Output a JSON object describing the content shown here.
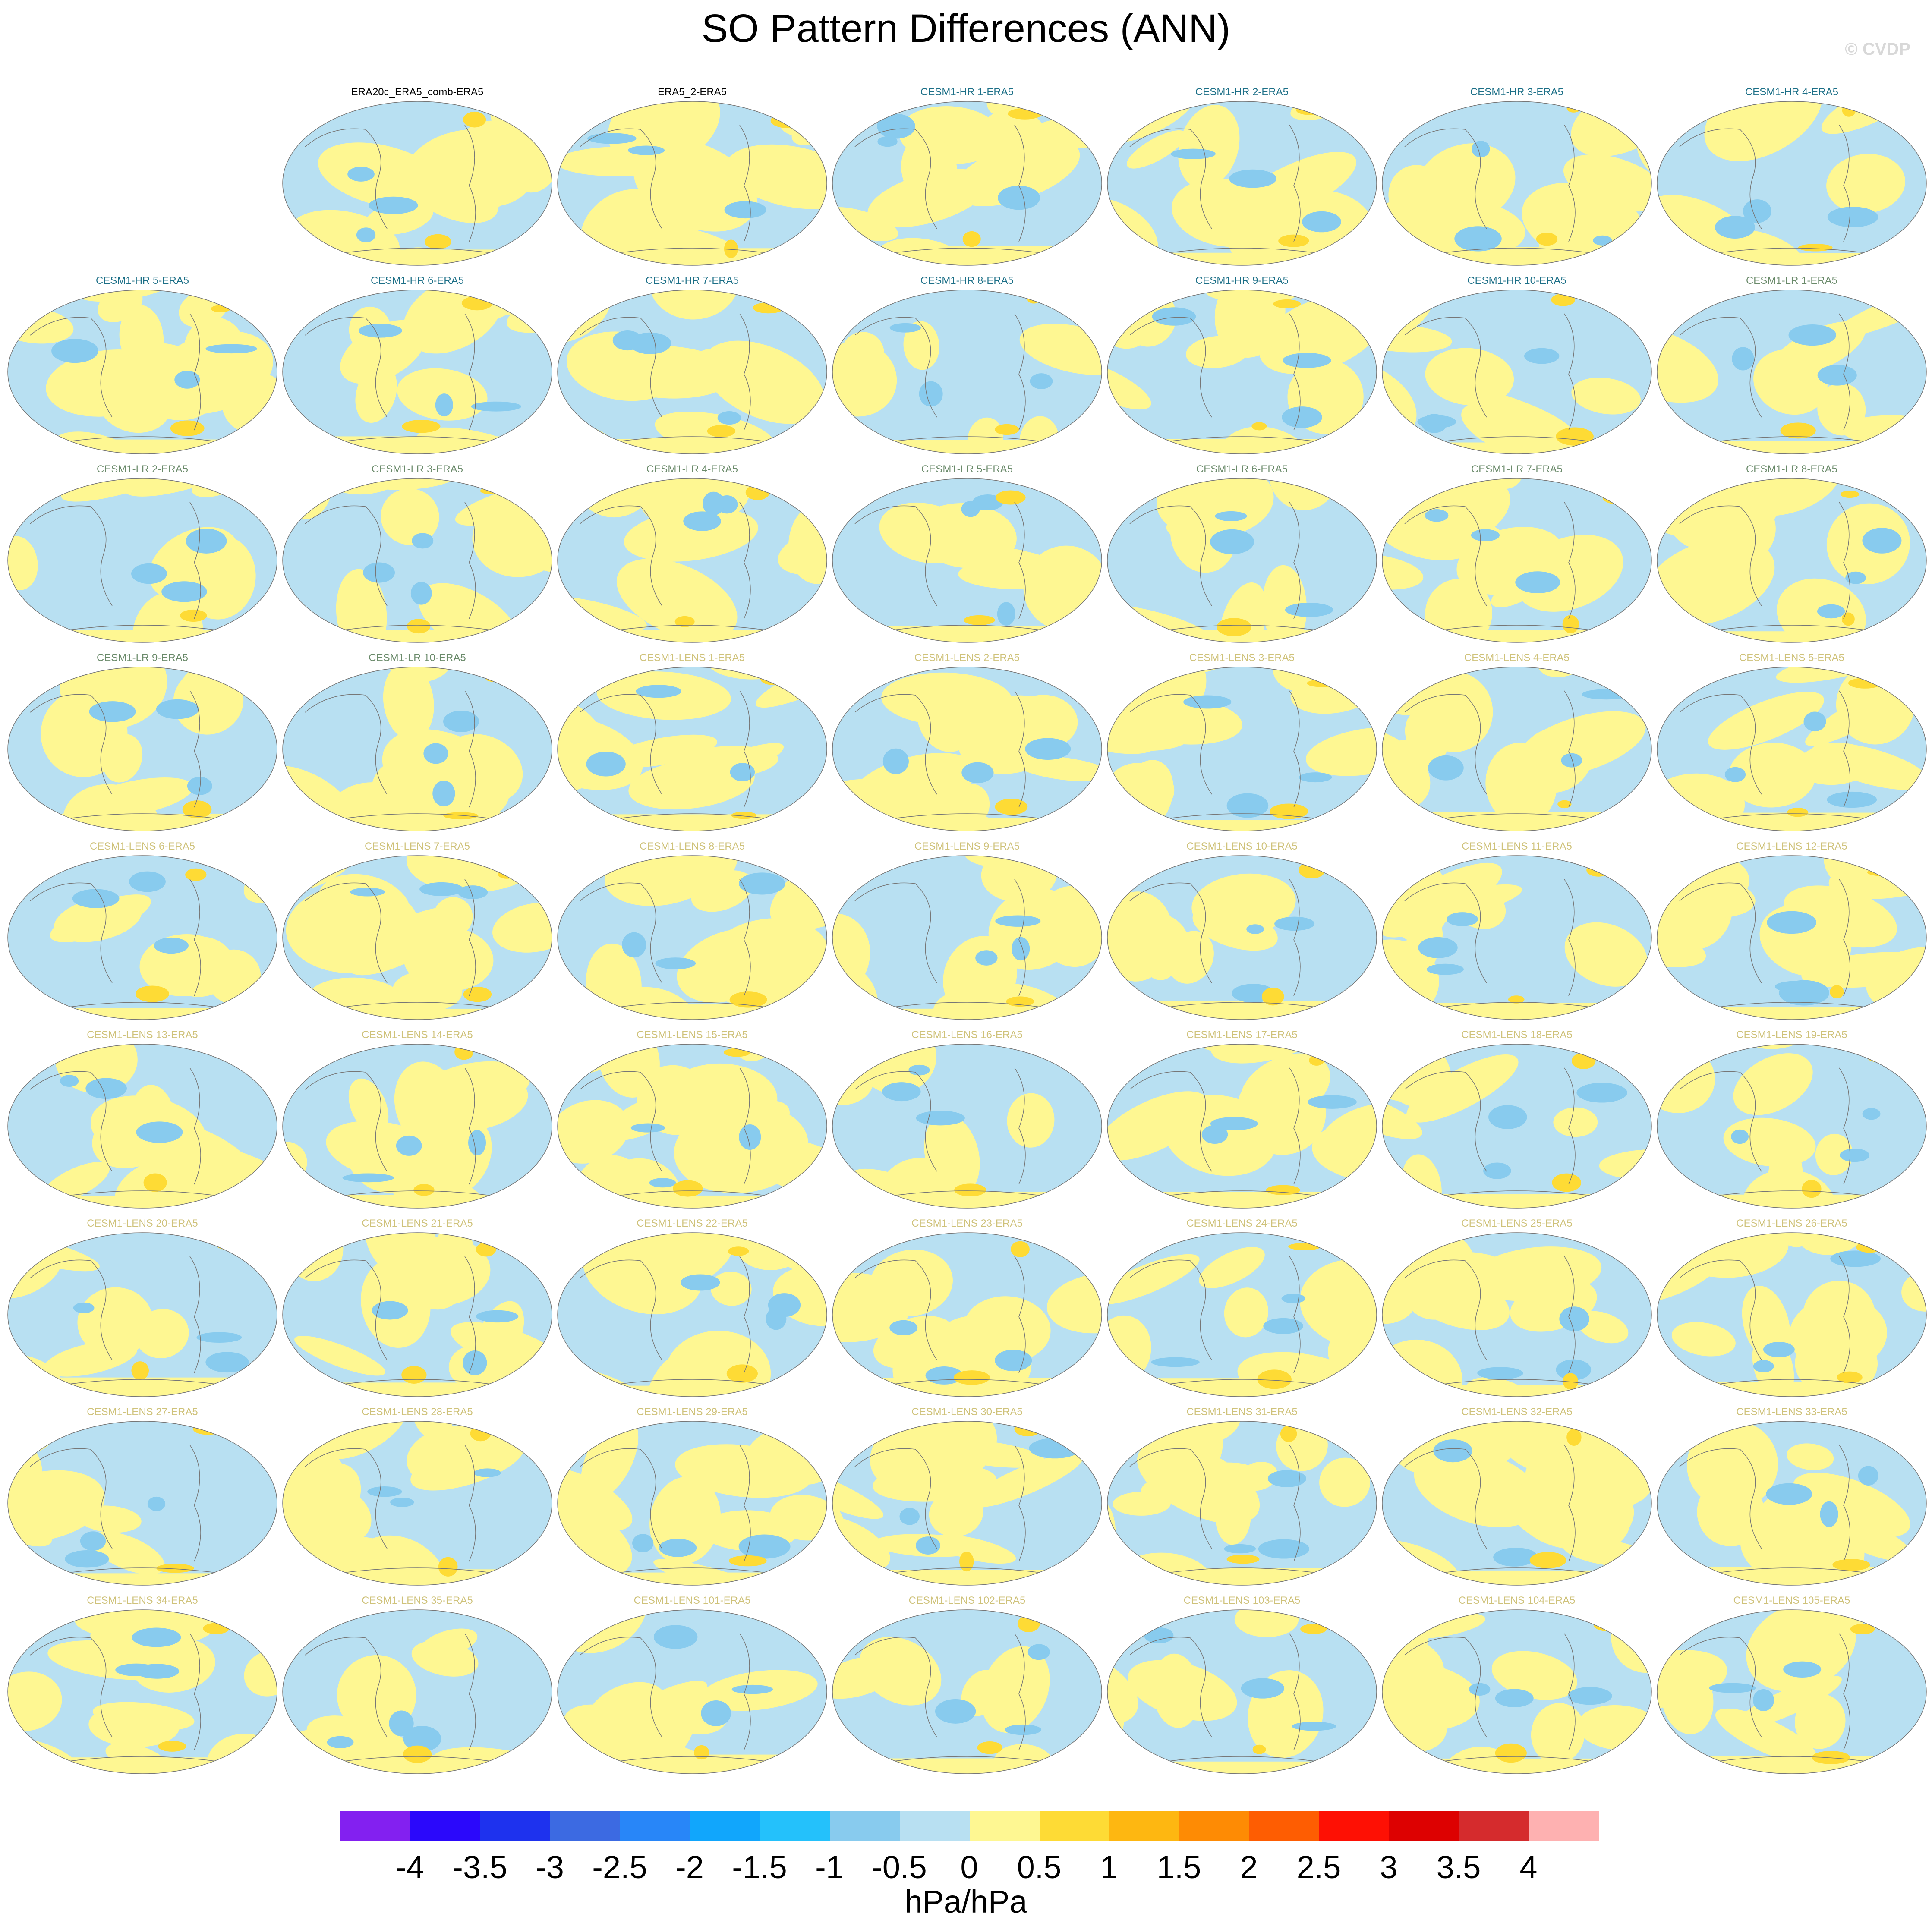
{
  "title": "SO Pattern Differences (ANN)",
  "watermark": "© CVDP",
  "group_colors": {
    "obs": "#000000",
    "hr": "#1c6f87",
    "lr": "#6a8a6a",
    "lens": "#cfc27a"
  },
  "chart_data": {
    "type": "heatmap",
    "title": "SO Pattern Differences (ANN)",
    "description_units": "hPa/hPa",
    "panels": [
      {
        "label": "ERA20c_ERA5_comb-ERA5",
        "group": "obs"
      },
      {
        "label": "ERA5_2-ERA5",
        "group": "obs"
      },
      {
        "label": "CESM1-HR 1-ERA5",
        "group": "hr"
      },
      {
        "label": "CESM1-HR 2-ERA5",
        "group": "hr"
      },
      {
        "label": "CESM1-HR 3-ERA5",
        "group": "hr"
      },
      {
        "label": "CESM1-HR 4-ERA5",
        "group": "hr"
      },
      {
        "label": "CESM1-HR 5-ERA5",
        "group": "hr"
      },
      {
        "label": "CESM1-HR 6-ERA5",
        "group": "hr"
      },
      {
        "label": "CESM1-HR 7-ERA5",
        "group": "hr"
      },
      {
        "label": "CESM1-HR 8-ERA5",
        "group": "hr"
      },
      {
        "label": "CESM1-HR 9-ERA5",
        "group": "hr"
      },
      {
        "label": "CESM1-HR 10-ERA5",
        "group": "hr"
      },
      {
        "label": "CESM1-LR 1-ERA5",
        "group": "lr"
      },
      {
        "label": "CESM1-LR 2-ERA5",
        "group": "lr"
      },
      {
        "label": "CESM1-LR 3-ERA5",
        "group": "lr"
      },
      {
        "label": "CESM1-LR 4-ERA5",
        "group": "lr"
      },
      {
        "label": "CESM1-LR 5-ERA5",
        "group": "lr"
      },
      {
        "label": "CESM1-LR 6-ERA5",
        "group": "lr"
      },
      {
        "label": "CESM1-LR 7-ERA5",
        "group": "lr"
      },
      {
        "label": "CESM1-LR 8-ERA5",
        "group": "lr"
      },
      {
        "label": "CESM1-LR 9-ERA5",
        "group": "lr"
      },
      {
        "label": "CESM1-LR 10-ERA5",
        "group": "lr"
      },
      {
        "label": "CESM1-LENS 1-ERA5",
        "group": "lens"
      },
      {
        "label": "CESM1-LENS 2-ERA5",
        "group": "lens"
      },
      {
        "label": "CESM1-LENS 3-ERA5",
        "group": "lens"
      },
      {
        "label": "CESM1-LENS 4-ERA5",
        "group": "lens"
      },
      {
        "label": "CESM1-LENS 5-ERA5",
        "group": "lens"
      },
      {
        "label": "CESM1-LENS 6-ERA5",
        "group": "lens"
      },
      {
        "label": "CESM1-LENS 7-ERA5",
        "group": "lens"
      },
      {
        "label": "CESM1-LENS 8-ERA5",
        "group": "lens"
      },
      {
        "label": "CESM1-LENS 9-ERA5",
        "group": "lens"
      },
      {
        "label": "CESM1-LENS 10-ERA5",
        "group": "lens"
      },
      {
        "label": "CESM1-LENS 11-ERA5",
        "group": "lens"
      },
      {
        "label": "CESM1-LENS 12-ERA5",
        "group": "lens"
      },
      {
        "label": "CESM1-LENS 13-ERA5",
        "group": "lens"
      },
      {
        "label": "CESM1-LENS 14-ERA5",
        "group": "lens"
      },
      {
        "label": "CESM1-LENS 15-ERA5",
        "group": "lens"
      },
      {
        "label": "CESM1-LENS 16-ERA5",
        "group": "lens"
      },
      {
        "label": "CESM1-LENS 17-ERA5",
        "group": "lens"
      },
      {
        "label": "CESM1-LENS 18-ERA5",
        "group": "lens"
      },
      {
        "label": "CESM1-LENS 19-ERA5",
        "group": "lens"
      },
      {
        "label": "CESM1-LENS 20-ERA5",
        "group": "lens"
      },
      {
        "label": "CESM1-LENS 21-ERA5",
        "group": "lens"
      },
      {
        "label": "CESM1-LENS 22-ERA5",
        "group": "lens"
      },
      {
        "label": "CESM1-LENS 23-ERA5",
        "group": "lens"
      },
      {
        "label": "CESM1-LENS 24-ERA5",
        "group": "lens"
      },
      {
        "label": "CESM1-LENS 25-ERA5",
        "group": "lens"
      },
      {
        "label": "CESM1-LENS 26-ERA5",
        "group": "lens"
      },
      {
        "label": "CESM1-LENS 27-ERA5",
        "group": "lens"
      },
      {
        "label": "CESM1-LENS 28-ERA5",
        "group": "lens"
      },
      {
        "label": "CESM1-LENS 29-ERA5",
        "group": "lens"
      },
      {
        "label": "CESM1-LENS 30-ERA5",
        "group": "lens"
      },
      {
        "label": "CESM1-LENS 31-ERA5",
        "group": "lens"
      },
      {
        "label": "CESM1-LENS 32-ERA5",
        "group": "lens"
      },
      {
        "label": "CESM1-LENS 33-ERA5",
        "group": "lens"
      },
      {
        "label": "CESM1-LENS 34-ERA5",
        "group": "lens"
      },
      {
        "label": "CESM1-LENS 35-ERA5",
        "group": "lens"
      },
      {
        "label": "CESM1-LENS 101-ERA5",
        "group": "lens"
      },
      {
        "label": "CESM1-LENS 102-ERA5",
        "group": "lens"
      },
      {
        "label": "CESM1-LENS 103-ERA5",
        "group": "lens"
      },
      {
        "label": "CESM1-LENS 104-ERA5",
        "group": "lens"
      },
      {
        "label": "CESM1-LENS 105-ERA5",
        "group": "lens"
      }
    ],
    "colorbar": {
      "levels": [
        "-4",
        "-3.5",
        "-3",
        "-2.5",
        "-2",
        "-1.5",
        "-1",
        "-0.5",
        "0",
        "0.5",
        "1",
        "1.5",
        "2",
        "2.5",
        "3",
        "3.5",
        "4"
      ],
      "colors": [
        "#8320f0",
        "#2b08fb",
        "#1e32ee",
        "#3c6ae2",
        "#2886f8",
        "#11a6fc",
        "#24c1fb",
        "#88cbee",
        "#b8e0f2",
        "#fef792",
        "#fedb35",
        "#feb711",
        "#fe8b04",
        "#fe5d02",
        "#fe1004",
        "#dd0101",
        "#d52b2d",
        "#feb1b1"
      ],
      "units": "hPa/hPa"
    }
  }
}
